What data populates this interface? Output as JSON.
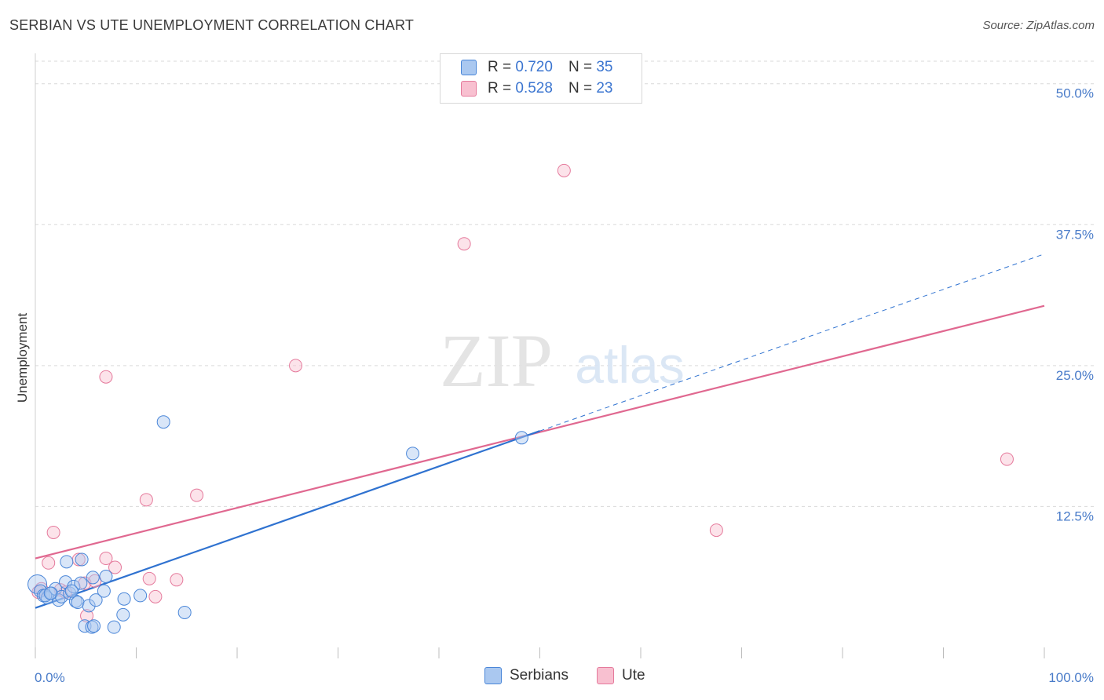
{
  "title": "SERBIAN VS UTE UNEMPLOYMENT CORRELATION CHART",
  "source": "Source: ZipAtlas.com",
  "watermark": {
    "zip": "ZIP",
    "atlas": "atlas"
  },
  "legend": {
    "rows": [
      {
        "r_label": "R =",
        "r_value": "0.720",
        "n_label": "N =",
        "n_value": "35"
      },
      {
        "r_label": "R =",
        "r_value": "0.528",
        "n_label": "N =",
        "n_value": "23"
      }
    ]
  },
  "bottom_legend": [
    "Serbians",
    "Ute"
  ],
  "colors": {
    "serbians_fill": "#aac8f0",
    "serbians_stroke": "#4a86d8",
    "serbians_line": "#2f72d0",
    "ute_fill": "#f8c0d0",
    "ute_stroke": "#e57a9c",
    "ute_line": "#e06890",
    "axis_text": "#4a7cc9",
    "grid": "#d9d9d9"
  },
  "chart_data": {
    "type": "scatter",
    "title": "SERBIAN VS UTE UNEMPLOYMENT CORRELATION CHART",
    "xlabel": "",
    "ylabel": "Unemployment",
    "xlim": [
      0,
      100
    ],
    "ylim": [
      0,
      52
    ],
    "x_tick_labels": [
      "0.0%",
      "100.0%"
    ],
    "y_ticks": [
      12.5,
      25.0,
      37.5,
      50.0
    ],
    "y_tick_labels": [
      "12.5%",
      "25.0%",
      "37.5%",
      "50.0%"
    ],
    "series": [
      {
        "name": "Serbians",
        "points": [
          [
            0.2,
            5.6
          ],
          [
            0.5,
            5.0
          ],
          [
            0.8,
            4.6
          ],
          [
            1.2,
            4.4
          ],
          [
            1.6,
            4.8
          ],
          [
            2.0,
            5.2
          ],
          [
            2.3,
            4.2
          ],
          [
            2.6,
            4.5
          ],
          [
            3.0,
            5.8
          ],
          [
            3.1,
            7.6
          ],
          [
            3.4,
            4.8
          ],
          [
            3.8,
            5.4
          ],
          [
            4.0,
            4.1
          ],
          [
            4.2,
            4.0
          ],
          [
            4.5,
            5.7
          ],
          [
            4.6,
            7.8
          ],
          [
            4.9,
            1.9
          ],
          [
            5.3,
            3.7
          ],
          [
            5.6,
            1.8
          ],
          [
            5.7,
            6.2
          ],
          [
            5.8,
            1.9
          ],
          [
            6.0,
            4.2
          ],
          [
            6.8,
            5.0
          ],
          [
            7.0,
            6.3
          ],
          [
            7.8,
            1.8
          ],
          [
            8.7,
            2.9
          ],
          [
            8.8,
            4.3
          ],
          [
            10.4,
            4.6
          ],
          [
            12.7,
            20.0
          ],
          [
            14.8,
            3.1
          ],
          [
            37.4,
            17.2
          ],
          [
            48.2,
            18.6
          ],
          [
            1.0,
            4.6
          ],
          [
            1.5,
            4.8
          ],
          [
            3.6,
            5.0
          ]
        ],
        "trend": {
          "x": [
            0,
            50
          ],
          "y": [
            3.5,
            19.2
          ]
        },
        "trend_extension": {
          "x": [
            50,
            100
          ],
          "y": [
            19.2,
            34.9
          ]
        }
      },
      {
        "name": "Ute",
        "points": [
          [
            0.3,
            4.9
          ],
          [
            1.3,
            7.5
          ],
          [
            1.8,
            10.2
          ],
          [
            2.5,
            5.1
          ],
          [
            4.3,
            7.8
          ],
          [
            4.9,
            5.7
          ],
          [
            5.1,
            2.8
          ],
          [
            5.9,
            5.9
          ],
          [
            7.0,
            7.9
          ],
          [
            7.9,
            7.1
          ],
          [
            7.0,
            24.0
          ],
          [
            11.0,
            13.1
          ],
          [
            11.3,
            6.1
          ],
          [
            11.9,
            4.5
          ],
          [
            14.0,
            6.0
          ],
          [
            16.0,
            13.5
          ],
          [
            25.8,
            25.0
          ],
          [
            42.5,
            35.8
          ],
          [
            52.4,
            42.3
          ],
          [
            67.5,
            10.4
          ],
          [
            96.3,
            16.7
          ],
          [
            0.6,
            5.2
          ],
          [
            3.0,
            4.9
          ]
        ],
        "trend": {
          "x": [
            0,
            100
          ],
          "y": [
            7.9,
            30.3
          ]
        }
      }
    ]
  }
}
